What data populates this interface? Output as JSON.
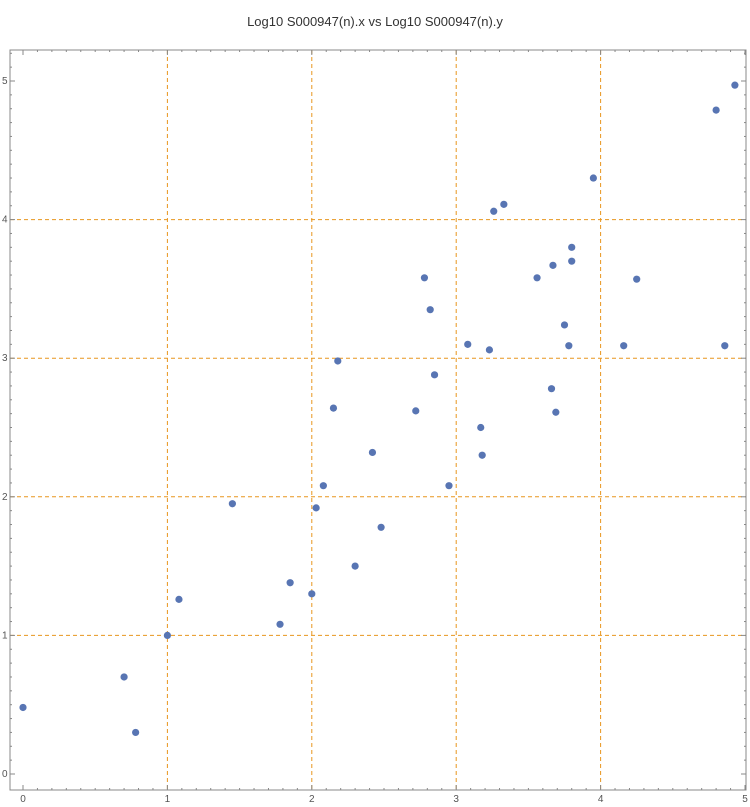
{
  "chart_data": {
    "type": "scatter",
    "title": "Log10 S000947(n).x vs Log10 S000947(n).y",
    "xlabel": "",
    "ylabel": "",
    "xlim": [
      0,
      5.2
    ],
    "ylim": [
      0,
      5.2
    ],
    "xticks": [
      "0",
      "1",
      "2",
      "3",
      "4",
      "5"
    ],
    "yticks": [
      "0",
      "1",
      "2",
      "3",
      "4",
      "5"
    ],
    "grid": "dashed gridlines at 1, 2, 3, 4",
    "colors": {
      "points": "#5875b3",
      "grid": "#e8961e",
      "axis": "#888888"
    },
    "series": [
      {
        "points": [
          [
            0.0,
            0.48
          ],
          [
            0.7,
            0.7
          ],
          [
            0.78,
            0.3
          ],
          [
            1.0,
            1.0
          ],
          [
            1.08,
            1.26
          ],
          [
            1.45,
            1.95
          ],
          [
            1.78,
            1.08
          ],
          [
            1.85,
            1.38
          ],
          [
            2.0,
            1.3
          ],
          [
            2.03,
            1.92
          ],
          [
            2.08,
            2.08
          ],
          [
            2.15,
            2.64
          ],
          [
            2.18,
            2.98
          ],
          [
            2.3,
            1.5
          ],
          [
            2.42,
            2.32
          ],
          [
            2.48,
            1.78
          ],
          [
            2.72,
            2.62
          ],
          [
            2.78,
            3.58
          ],
          [
            2.82,
            3.35
          ],
          [
            2.85,
            2.88
          ],
          [
            2.95,
            2.08
          ],
          [
            3.08,
            3.1
          ],
          [
            3.17,
            2.5
          ],
          [
            3.18,
            2.3
          ],
          [
            3.23,
            3.06
          ],
          [
            3.26,
            4.06
          ],
          [
            3.33,
            4.11
          ],
          [
            3.56,
            3.58
          ],
          [
            3.66,
            2.78
          ],
          [
            3.67,
            3.67
          ],
          [
            3.69,
            2.61
          ],
          [
            3.75,
            3.24
          ],
          [
            3.78,
            3.09
          ],
          [
            3.8,
            3.8
          ],
          [
            3.8,
            3.7
          ],
          [
            3.95,
            4.3
          ],
          [
            4.16,
            3.09
          ],
          [
            4.25,
            3.57
          ],
          [
            4.8,
            4.79
          ],
          [
            4.86,
            3.09
          ],
          [
            4.93,
            4.97
          ]
        ]
      }
    ]
  }
}
